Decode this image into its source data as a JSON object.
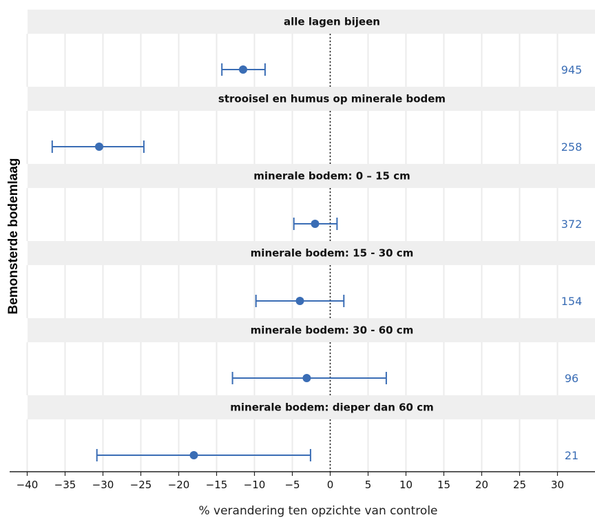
{
  "chart_data": {
    "type": "forest",
    "ylabel": "Bemonsterde bodemlaag",
    "xlabel": "% verandering ten opzichte van controle",
    "xlim": [
      -40,
      30
    ],
    "xticks": [
      -40,
      -35,
      -30,
      -25,
      -20,
      -15,
      -10,
      -5,
      0,
      5,
      10,
      15,
      20,
      25,
      30
    ],
    "xtick_labels": [
      "−40",
      "−35",
      "−30",
      "−25",
      "−20",
      "−15",
      "−10",
      "−5",
      "0",
      "5",
      "10",
      "15",
      "20",
      "25",
      "30"
    ],
    "reference_line": 0,
    "colors": {
      "marker": "#3a6db5",
      "count": "#3a6db5",
      "panel_header": "#efefef",
      "grid": "#ebebeb"
    },
    "panels": [
      {
        "label": "alle lagen bijeen",
        "estimate": -11.5,
        "ci_low": -14.3,
        "ci_high": -8.6,
        "n": "945"
      },
      {
        "label": "strooisel en humus op minerale bodem",
        "estimate": -30.5,
        "ci_low": -36.7,
        "ci_high": -24.6,
        "n": "258"
      },
      {
        "label": "minerale bodem: 0 – 15 cm",
        "estimate": -2.0,
        "ci_low": -4.8,
        "ci_high": 0.9,
        "n": "372"
      },
      {
        "label": "minerale bodem: 15 - 30 cm",
        "estimate": -4.0,
        "ci_low": -9.8,
        "ci_high": 1.8,
        "n": "154"
      },
      {
        "label": "minerale bodem: 30 - 60 cm",
        "estimate": -3.1,
        "ci_low": -12.9,
        "ci_high": 7.4,
        "n": "96"
      },
      {
        "label": "minerale bodem: dieper dan 60 cm",
        "estimate": -18.0,
        "ci_low": -30.8,
        "ci_high": -2.6,
        "n": "21"
      }
    ]
  }
}
